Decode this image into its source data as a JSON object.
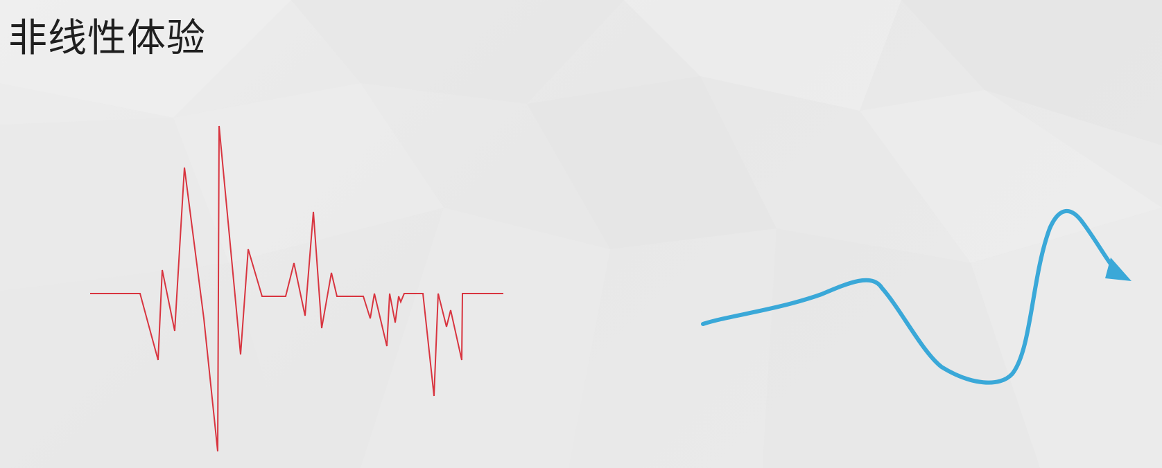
{
  "slide": {
    "title": "非线性体验"
  },
  "colors": {
    "background": "#eaeaea",
    "title_text": "#1f1f1f",
    "waveform_line": "#d8343f",
    "curve_arrow": "#3aa8d8"
  },
  "graphics": {
    "left": "red-erratic-waveform",
    "right": "blue-wavy-arrow"
  }
}
